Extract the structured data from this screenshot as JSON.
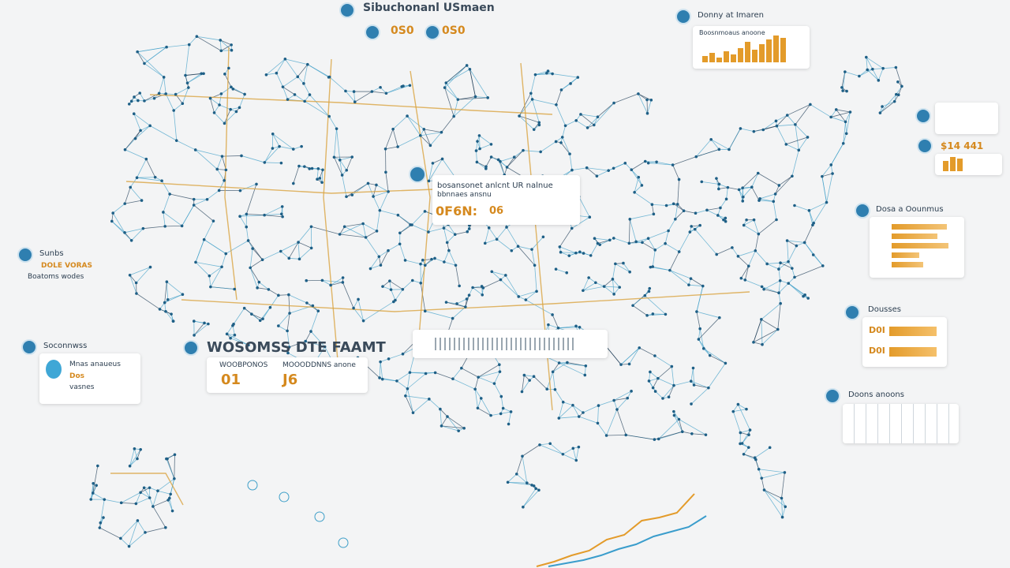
{
  "header": {
    "title": "Sibuchonanl USmaen",
    "badges": [
      "0S0",
      "0S0"
    ]
  },
  "market_panel": {
    "title": "Donny at Imaren",
    "caption": "Boosnmoaus anoone",
    "bars": [
      6,
      9,
      5,
      11,
      8,
      14,
      20,
      12,
      18,
      22,
      26,
      24
    ]
  },
  "ratio_panel": {
    "figure": "$14 441",
    "bars": [
      10,
      14,
      12
    ]
  },
  "share_panel": {
    "title": "Dosa a Oounmus",
    "bars": [
      70,
      58,
      72,
      35,
      40
    ]
  },
  "dose_panel": {
    "title": "Dousses",
    "rows": [
      {
        "label": "D0I",
        "value": 60
      },
      {
        "label": "D0I",
        "value": 60
      }
    ]
  },
  "doons_panel": {
    "title": "Doons anoons"
  },
  "left_note": {
    "title": "Sunbs",
    "lines": [
      "DOLE VORAS",
      "Boatoms wodes"
    ]
  },
  "west_panel": {
    "title": "Soconnwss",
    "lines": [
      "Mnas anaueus",
      "Dos",
      "vasnes"
    ]
  },
  "center_panel": {
    "title": "WOSOMSS DTE FAAMT",
    "labels": [
      "WOOBPONOS",
      "MOOODDNNS anone"
    ],
    "figures": [
      "01",
      "J6"
    ]
  },
  "callout": {
    "title": "bosansonet anlcnt UR nalnue",
    "subtitle": "bbnnaes ansnu",
    "figures": [
      "0F6N:",
      "06"
    ]
  },
  "trend": {
    "series": [
      {
        "color": "#e39b2a",
        "values": [
          0,
          3,
          7,
          10,
          17,
          20,
          29,
          31,
          34,
          46
        ]
      },
      {
        "color": "#3a9dcc",
        "values": [
          0,
          2,
          4,
          7,
          11,
          14,
          19,
          22,
          25,
          32
        ]
      }
    ]
  }
}
